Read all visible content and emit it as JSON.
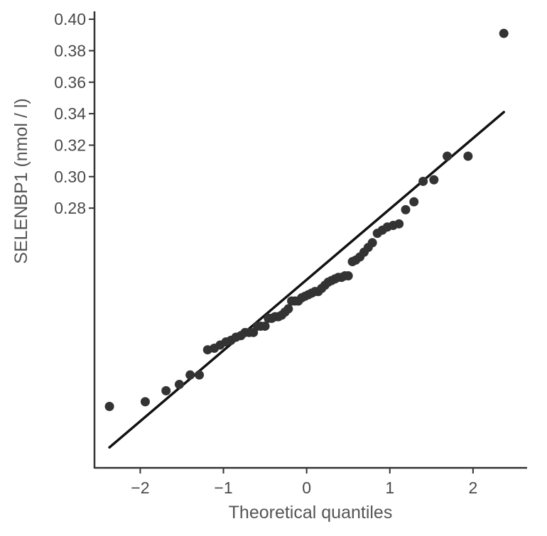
{
  "chart_data": {
    "type": "scatter",
    "title": "",
    "xlabel": "Theoretical quantiles",
    "ylabel": "SELENBP1 (nmol / l)",
    "xlim": [
      -2.55,
      2.65
    ],
    "ylim": [
      0.115,
      0.405
    ],
    "x_ticks": [
      {
        "value": -2,
        "label": "−2"
      },
      {
        "value": -1,
        "label": "−1"
      },
      {
        "value": 0,
        "label": "0"
      },
      {
        "value": 1,
        "label": "1"
      },
      {
        "value": 2,
        "label": "2"
      }
    ],
    "y_ticks": [
      {
        "value": 0.28,
        "label": "0.28"
      },
      {
        "value": 0.3,
        "label": "0.30"
      },
      {
        "value": 0.32,
        "label": "0.32"
      },
      {
        "value": 0.34,
        "label": "0.34"
      },
      {
        "value": 0.36,
        "label": "0.36"
      },
      {
        "value": 0.38,
        "label": "0.38"
      },
      {
        "value": 0.4,
        "label": "0.40"
      }
    ],
    "grid": false,
    "legend": "none",
    "point_color": "#333333",
    "line_color": "#111111",
    "reference_line": {
      "x": [
        -2.37,
        2.37
      ],
      "y": [
        0.128,
        0.341
      ]
    },
    "points": [
      {
        "x": -2.37,
        "y": 0.154
      },
      {
        "x": -1.94,
        "y": 0.157
      },
      {
        "x": -1.69,
        "y": 0.164
      },
      {
        "x": -1.53,
        "y": 0.168
      },
      {
        "x": -1.4,
        "y": 0.174
      },
      {
        "x": -1.29,
        "y": 0.174
      },
      {
        "x": -1.19,
        "y": 0.19
      },
      {
        "x": -1.11,
        "y": 0.191
      },
      {
        "x": -1.04,
        "y": 0.193
      },
      {
        "x": -0.97,
        "y": 0.195
      },
      {
        "x": -0.91,
        "y": 0.196
      },
      {
        "x": -0.85,
        "y": 0.198
      },
      {
        "x": -0.79,
        "y": 0.199
      },
      {
        "x": -0.74,
        "y": 0.201
      },
      {
        "x": -0.69,
        "y": 0.201
      },
      {
        "x": -0.64,
        "y": 0.201
      },
      {
        "x": -0.59,
        "y": 0.205
      },
      {
        "x": -0.55,
        "y": 0.205
      },
      {
        "x": -0.5,
        "y": 0.205
      },
      {
        "x": -0.46,
        "y": 0.21
      },
      {
        "x": -0.42,
        "y": 0.21
      },
      {
        "x": -0.38,
        "y": 0.211
      },
      {
        "x": -0.34,
        "y": 0.211
      },
      {
        "x": -0.3,
        "y": 0.212
      },
      {
        "x": -0.26,
        "y": 0.214
      },
      {
        "x": -0.22,
        "y": 0.216
      },
      {
        "x": -0.18,
        "y": 0.221
      },
      {
        "x": -0.14,
        "y": 0.221
      },
      {
        "x": -0.1,
        "y": 0.221
      },
      {
        "x": -0.06,
        "y": 0.223
      },
      {
        "x": -0.02,
        "y": 0.224
      },
      {
        "x": 0.02,
        "y": 0.225
      },
      {
        "x": 0.06,
        "y": 0.226
      },
      {
        "x": 0.1,
        "y": 0.227
      },
      {
        "x": 0.14,
        "y": 0.227
      },
      {
        "x": 0.18,
        "y": 0.229
      },
      {
        "x": 0.22,
        "y": 0.231
      },
      {
        "x": 0.26,
        "y": 0.233
      },
      {
        "x": 0.3,
        "y": 0.234
      },
      {
        "x": 0.34,
        "y": 0.235
      },
      {
        "x": 0.38,
        "y": 0.236
      },
      {
        "x": 0.42,
        "y": 0.236
      },
      {
        "x": 0.46,
        "y": 0.237
      },
      {
        "x": 0.5,
        "y": 0.237
      },
      {
        "x": 0.55,
        "y": 0.246
      },
      {
        "x": 0.59,
        "y": 0.247
      },
      {
        "x": 0.64,
        "y": 0.249
      },
      {
        "x": 0.69,
        "y": 0.252
      },
      {
        "x": 0.74,
        "y": 0.255
      },
      {
        "x": 0.79,
        "y": 0.258
      },
      {
        "x": 0.85,
        "y": 0.264
      },
      {
        "x": 0.91,
        "y": 0.266
      },
      {
        "x": 0.97,
        "y": 0.268
      },
      {
        "x": 1.04,
        "y": 0.269
      },
      {
        "x": 1.11,
        "y": 0.27
      },
      {
        "x": 1.19,
        "y": 0.279
      },
      {
        "x": 1.29,
        "y": 0.284
      },
      {
        "x": 1.4,
        "y": 0.297
      },
      {
        "x": 1.53,
        "y": 0.298
      },
      {
        "x": 1.69,
        "y": 0.313
      },
      {
        "x": 1.94,
        "y": 0.313
      },
      {
        "x": 2.37,
        "y": 0.391
      }
    ]
  }
}
